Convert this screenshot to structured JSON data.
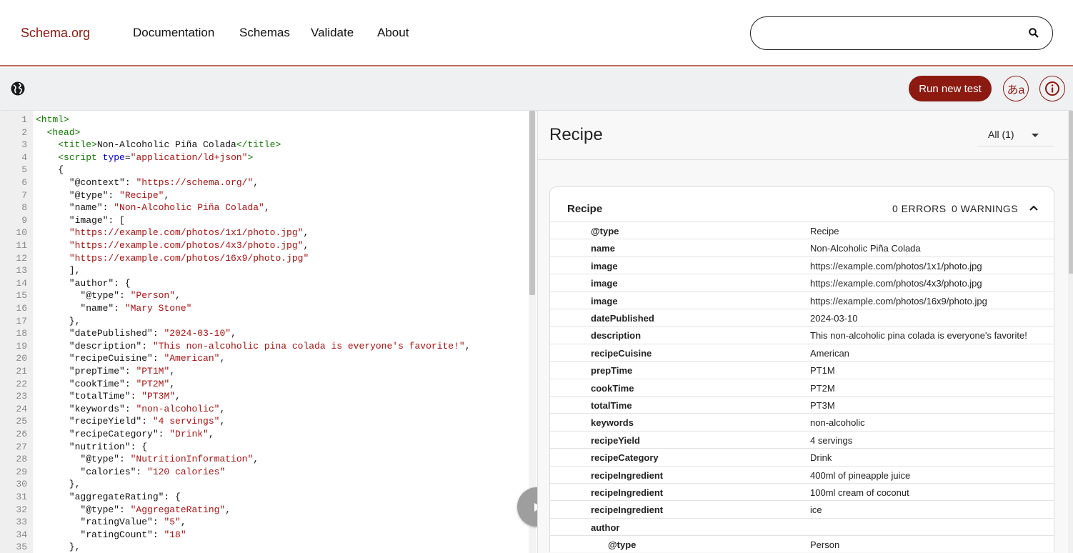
{
  "header": {
    "logo": "Schema.org",
    "nav": [
      "Documentation",
      "Schemas",
      "Validate",
      "About"
    ],
    "search": {
      "value": "",
      "placeholder": ""
    }
  },
  "toolbar": {
    "run_label": "Run new test",
    "lang_label": "あa",
    "info_label": "i"
  },
  "editor": {
    "lines": [
      [
        [
          "tag",
          "<html>"
        ]
      ],
      [
        [
          "txt",
          "  "
        ],
        [
          "tag",
          "<head>"
        ]
      ],
      [
        [
          "txt",
          "    "
        ],
        [
          "tag",
          "<title>"
        ],
        [
          "txt",
          "Non-Alcoholic Piña Colada"
        ],
        [
          "tag",
          "</title>"
        ]
      ],
      [
        [
          "txt",
          "    "
        ],
        [
          "tag",
          "<script "
        ],
        [
          "attr",
          "type"
        ],
        [
          "txt",
          "="
        ],
        [
          "str",
          "\"application/ld+json\""
        ],
        [
          "tag",
          ">"
        ]
      ],
      [
        [
          "txt",
          "    {"
        ]
      ],
      [
        [
          "txt",
          "      \"@context\": "
        ],
        [
          "str",
          "\"https://schema.org/\""
        ],
        [
          "txt",
          ","
        ]
      ],
      [
        [
          "txt",
          "      \"@type\": "
        ],
        [
          "str",
          "\"Recipe\""
        ],
        [
          "txt",
          ","
        ]
      ],
      [
        [
          "txt",
          "      \"name\": "
        ],
        [
          "str",
          "\"Non-Alcoholic Piña Colada\""
        ],
        [
          "txt",
          ","
        ]
      ],
      [
        [
          "txt",
          "      \"image\": ["
        ]
      ],
      [
        [
          "txt",
          "      "
        ],
        [
          "str",
          "\"https://example.com/photos/1x1/photo.jpg\""
        ],
        [
          "txt",
          ","
        ]
      ],
      [
        [
          "txt",
          "      "
        ],
        [
          "str",
          "\"https://example.com/photos/4x3/photo.jpg\""
        ],
        [
          "txt",
          ","
        ]
      ],
      [
        [
          "txt",
          "      "
        ],
        [
          "str",
          "\"https://example.com/photos/16x9/photo.jpg\""
        ]
      ],
      [
        [
          "txt",
          "      ],"
        ]
      ],
      [
        [
          "txt",
          "      \"author\": {"
        ]
      ],
      [
        [
          "txt",
          "        \"@type\": "
        ],
        [
          "str",
          "\"Person\""
        ],
        [
          "txt",
          ","
        ]
      ],
      [
        [
          "txt",
          "        \"name\": "
        ],
        [
          "str",
          "\"Mary Stone\""
        ]
      ],
      [
        [
          "txt",
          "      },"
        ]
      ],
      [
        [
          "txt",
          "      \"datePublished\": "
        ],
        [
          "str",
          "\"2024-03-10\""
        ],
        [
          "txt",
          ","
        ]
      ],
      [
        [
          "txt",
          "      \"description\": "
        ],
        [
          "str",
          "\"This non-alcoholic pina colada is everyone's favorite!\""
        ],
        [
          "txt",
          ","
        ]
      ],
      [
        [
          "txt",
          "      \"recipeCuisine\": "
        ],
        [
          "str",
          "\"American\""
        ],
        [
          "txt",
          ","
        ]
      ],
      [
        [
          "txt",
          "      \"prepTime\": "
        ],
        [
          "str",
          "\"PT1M\""
        ],
        [
          "txt",
          ","
        ]
      ],
      [
        [
          "txt",
          "      \"cookTime\": "
        ],
        [
          "str",
          "\"PT2M\""
        ],
        [
          "txt",
          ","
        ]
      ],
      [
        [
          "txt",
          "      \"totalTime\": "
        ],
        [
          "str",
          "\"PT3M\""
        ],
        [
          "txt",
          ","
        ]
      ],
      [
        [
          "txt",
          "      \"keywords\": "
        ],
        [
          "str",
          "\"non-alcoholic\""
        ],
        [
          "txt",
          ","
        ]
      ],
      [
        [
          "txt",
          "      \"recipeYield\": "
        ],
        [
          "str",
          "\"4 servings\""
        ],
        [
          "txt",
          ","
        ]
      ],
      [
        [
          "txt",
          "      \"recipeCategory\": "
        ],
        [
          "str",
          "\"Drink\""
        ],
        [
          "txt",
          ","
        ]
      ],
      [
        [
          "txt",
          "      \"nutrition\": {"
        ]
      ],
      [
        [
          "txt",
          "        \"@type\": "
        ],
        [
          "str",
          "\"NutritionInformation\""
        ],
        [
          "txt",
          ","
        ]
      ],
      [
        [
          "txt",
          "        \"calories\": "
        ],
        [
          "str",
          "\"120 calories\""
        ]
      ],
      [
        [
          "txt",
          "      },"
        ]
      ],
      [
        [
          "txt",
          "      \"aggregateRating\": {"
        ]
      ],
      [
        [
          "txt",
          "        \"@type\": "
        ],
        [
          "str",
          "\"AggregateRating\""
        ],
        [
          "txt",
          ","
        ]
      ],
      [
        [
          "txt",
          "        \"ratingValue\": "
        ],
        [
          "str",
          "\"5\""
        ],
        [
          "txt",
          ","
        ]
      ],
      [
        [
          "txt",
          "        \"ratingCount\": "
        ],
        [
          "str",
          "\"18\""
        ]
      ],
      [
        [
          "txt",
          "      },"
        ]
      ]
    ]
  },
  "result": {
    "title": "Recipe",
    "filter": "All (1)",
    "card": {
      "title": "Recipe",
      "errors": "0 ERRORS",
      "warnings": "0 WARNINGS",
      "rows": [
        {
          "k": "@type",
          "v": "Recipe"
        },
        {
          "k": "name",
          "v": "Non-Alcoholic Piña Colada"
        },
        {
          "k": "image",
          "v": "https://example.com/photos/1x1/photo.jpg"
        },
        {
          "k": "image",
          "v": "https://example.com/photos/4x3/photo.jpg"
        },
        {
          "k": "image",
          "v": "https://example.com/photos/16x9/photo.jpg"
        },
        {
          "k": "datePublished",
          "v": "2024-03-10"
        },
        {
          "k": "description",
          "v": "This non-alcoholic pina colada is everyone's favorite!"
        },
        {
          "k": "recipeCuisine",
          "v": "American"
        },
        {
          "k": "prepTime",
          "v": "PT1M"
        },
        {
          "k": "cookTime",
          "v": "PT2M"
        },
        {
          "k": "totalTime",
          "v": "PT3M"
        },
        {
          "k": "keywords",
          "v": "non-alcoholic"
        },
        {
          "k": "recipeYield",
          "v": "4 servings"
        },
        {
          "k": "recipeCategory",
          "v": "Drink"
        },
        {
          "k": "recipeIngredient",
          "v": "400ml of pineapple juice"
        },
        {
          "k": "recipeIngredient",
          "v": "100ml cream of coconut"
        },
        {
          "k": "recipeIngredient",
          "v": "ice"
        },
        {
          "k": "author",
          "v": ""
        },
        {
          "k": "@type",
          "v": "Person",
          "nested": true
        }
      ]
    }
  },
  "colors": {
    "brand": "#8c1a11",
    "tag": "#117700",
    "attr": "#0000cc",
    "string": "#aa1111"
  }
}
